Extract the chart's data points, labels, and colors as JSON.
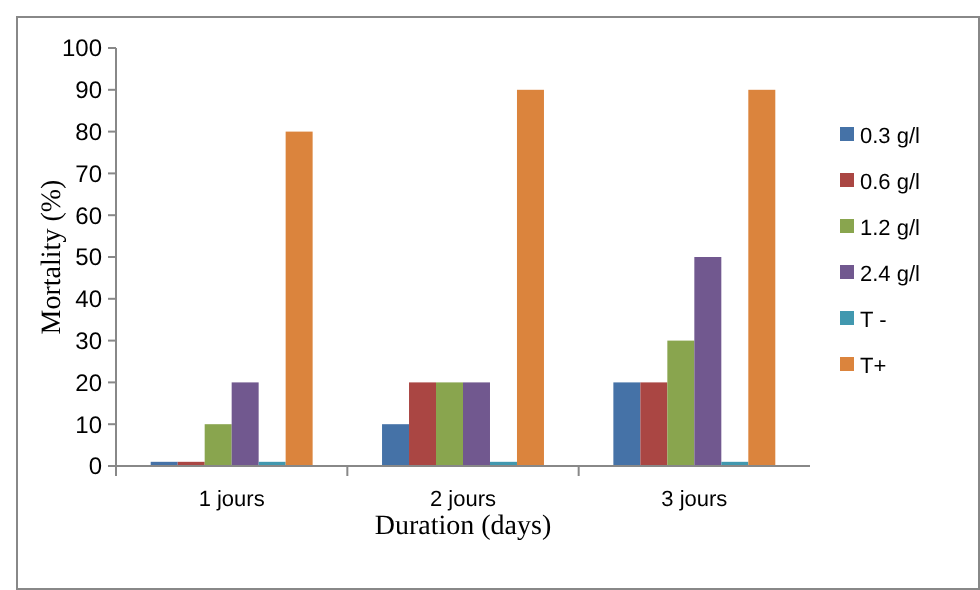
{
  "chart_data": {
    "type": "bar",
    "xlabel": "Duration (days)",
    "ylabel": "Mortality (%)",
    "categories": [
      "1 jours",
      "2 jours",
      "3 jours"
    ],
    "series": [
      {
        "name": "0.3 g/l",
        "color": "#4572a7",
        "values": [
          1,
          10,
          20
        ]
      },
      {
        "name": "0.6 g/l",
        "color": "#aa4643",
        "values": [
          1,
          20,
          20
        ]
      },
      {
        "name": "1.2 g/l",
        "color": "#89a54e",
        "values": [
          10,
          20,
          30
        ]
      },
      {
        "name": "2.4 g/l",
        "color": "#71588f",
        "values": [
          20,
          20,
          50
        ]
      },
      {
        "name": "T -",
        "color": "#4198af",
        "values": [
          1,
          1,
          1
        ]
      },
      {
        "name": "T+",
        "color": "#db843d",
        "values": [
          80,
          90,
          90
        ]
      }
    ],
    "ylim": [
      0,
      100
    ],
    "yticks": [
      0,
      10,
      20,
      30,
      40,
      50,
      60,
      70,
      80,
      90,
      100
    ],
    "legend": "right"
  }
}
